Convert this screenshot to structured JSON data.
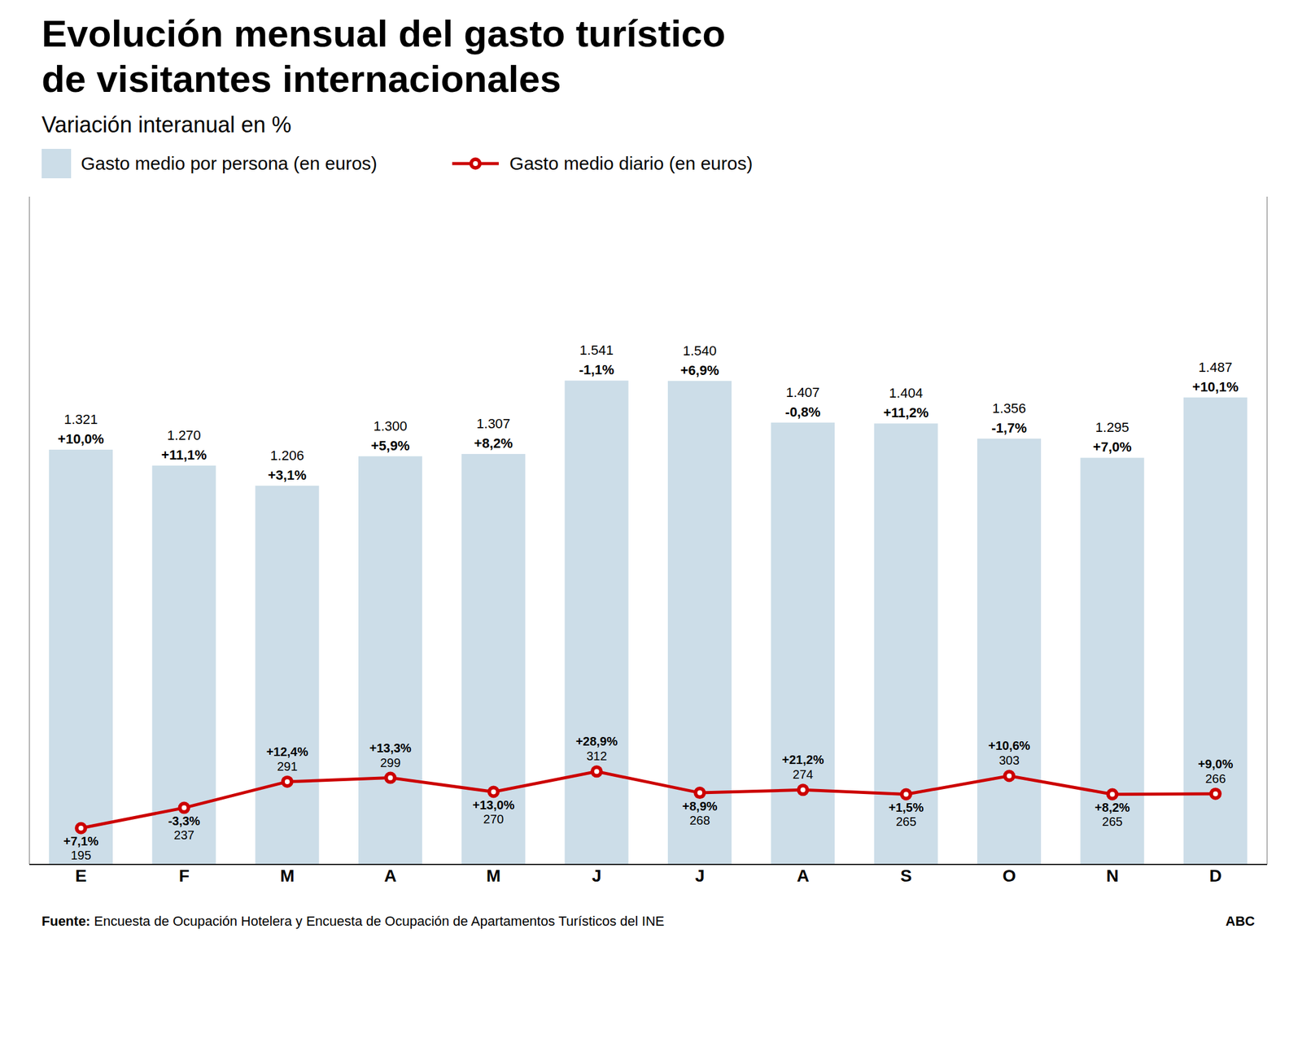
{
  "chart_data": {
    "type": "bar",
    "title": "Evolución mensual del gasto turístico\nde visitantes internacionales",
    "subtitle": "Variación interanual en %",
    "categories": [
      "E",
      "F",
      "M",
      "A",
      "M",
      "J",
      "J",
      "A",
      "S",
      "O",
      "N",
      "D"
    ],
    "series": [
      {
        "name": "Gasto medio por persona (en euros)",
        "type": "bar",
        "color": "#ccdde8",
        "values": [
          1321,
          1270,
          1206,
          1300,
          1307,
          1541,
          1540,
          1407,
          1404,
          1356,
          1295,
          1487
        ],
        "value_labels": [
          "1.321",
          "1.270",
          "1.206",
          "1.300",
          "1.307",
          "1.541",
          "1.540",
          "1.407",
          "1.404",
          "1.356",
          "1.295",
          "1.487"
        ],
        "changes": [
          10.0,
          11.1,
          3.1,
          5.9,
          8.2,
          -1.1,
          6.9,
          -0.8,
          11.2,
          -1.7,
          7.0,
          10.1
        ],
        "change_labels": [
          "+10,0%",
          "+11,1%",
          "+3,1%",
          "+5,9%",
          "+8,2%",
          "-1,1%",
          "+6,9%",
          "-0,8%",
          "+11,2%",
          "-1,7%",
          "+7,0%",
          "+10,1%"
        ]
      },
      {
        "name": "Gasto medio diario (en euros)",
        "type": "line",
        "axis": "y2",
        "color": "#cc0000",
        "marker": "circle",
        "values": [
          195,
          237,
          291,
          299,
          270,
          312,
          268,
          274,
          265,
          303,
          265,
          266
        ],
        "changes": [
          7.1,
          -3.3,
          12.4,
          13.3,
          13.0,
          28.9,
          8.9,
          21.2,
          1.5,
          10.6,
          8.2,
          9.0
        ],
        "change_labels": [
          "+7,1%",
          "-3,3%",
          "+12,4%",
          "+13,3%",
          "+13,0%",
          "+28,9%",
          "+8,9%",
          "+21,2%",
          "+1,5%",
          "+10,6%",
          "+8,2%",
          "+9,0%"
        ]
      }
    ],
    "ylim": [
      0,
      2126.58
    ],
    "y2lim": [
      120,
      1500
    ],
    "tick_labels": "x",
    "grid": false,
    "legend": "top",
    "data_labels": true,
    "source": "Fuente: Encuesta de Ocupación Hotelera y Encuesta de Ocupación de Apartamentos Turísticos del INE",
    "brand": "ABC"
  }
}
